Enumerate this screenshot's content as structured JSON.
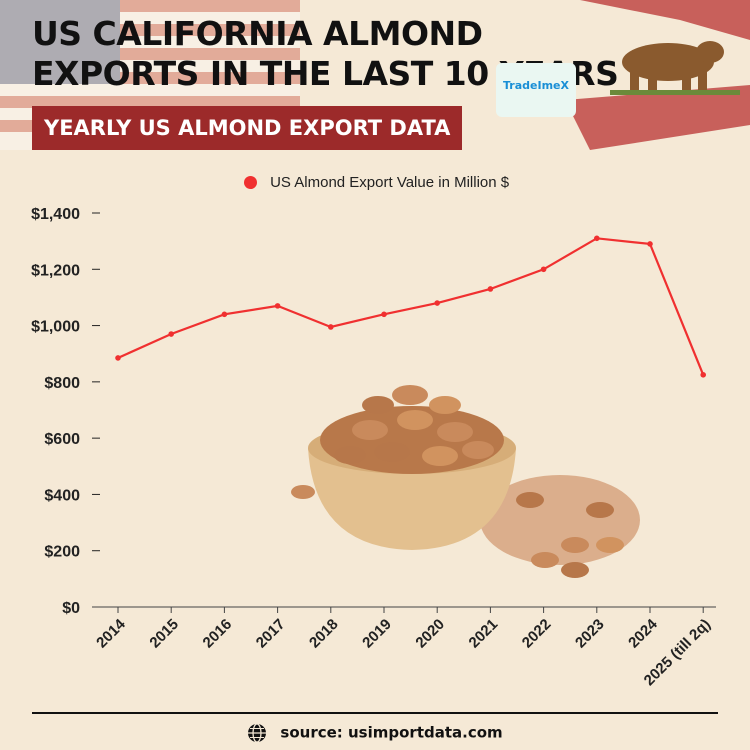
{
  "header": {
    "title": "US CALIFORNIA ALMOND EXPORTS IN THE LAST 10 YEARS",
    "subtitle": "YEARLY US ALMOND EXPORT DATA",
    "logo_text": "TradeImeX"
  },
  "footer": {
    "source": "source: usimportdata.com",
    "icon": "globe-icon"
  },
  "colors": {
    "line": "#f03030",
    "banner": "#9c2a2a",
    "background": "#f5e9d6"
  },
  "decor": {
    "image": "almond-bowl",
    "flag": "us-flag",
    "emblem": "california-bear"
  },
  "chart_data": {
    "type": "line",
    "categories": [
      "2014",
      "2015",
      "2016",
      "2017",
      "2018",
      "2019",
      "2020",
      "2021",
      "2022",
      "2023",
      "2024",
      "2025 (till 2q)"
    ],
    "series": [
      {
        "name": "US Almond Export Value in Million $",
        "values": [
          885,
          970,
          1040,
          1070,
          995,
          1040,
          1080,
          1130,
          1200,
          1310,
          1290,
          825
        ]
      }
    ],
    "ylim": [
      0,
      1400
    ],
    "yticks": [
      0,
      200,
      400,
      600,
      800,
      1000,
      1200,
      1400
    ],
    "ytick_labels": [
      "$0",
      "$200",
      "$400",
      "$600",
      "$800",
      "$1,000",
      "$1,200",
      "$1,400"
    ],
    "legend": "top-center",
    "grid": false
  }
}
